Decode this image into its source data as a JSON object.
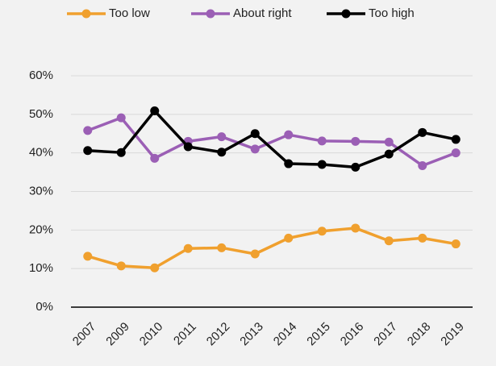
{
  "chart_data": {
    "type": "line",
    "categories": [
      "2007",
      "2009",
      "2010",
      "2011",
      "2012",
      "2013",
      "2014",
      "2015",
      "2016",
      "2017",
      "2018",
      "2019"
    ],
    "series": [
      {
        "name": "Too low",
        "color": "#f0a02e",
        "values": [
          13.2,
          10.7,
          10.2,
          15.2,
          15.4,
          13.8,
          17.9,
          19.7,
          20.5,
          17.2,
          17.9,
          16.4
        ]
      },
      {
        "name": "About right",
        "color": "#9b5fb5",
        "values": [
          45.8,
          49.1,
          38.6,
          43.0,
          44.2,
          41.0,
          44.7,
          43.1,
          43.0,
          42.8,
          36.7,
          40.0
        ]
      },
      {
        "name": "Too high",
        "color": "#000000",
        "values": [
          40.6,
          40.1,
          50.9,
          41.6,
          40.2,
          45.0,
          37.2,
          37.0,
          36.3,
          39.7,
          45.3,
          43.5
        ]
      }
    ],
    "ylim": [
      0,
      60
    ],
    "yticks": [
      {
        "value": 0,
        "label": "0%"
      },
      {
        "value": 10,
        "label": "10%"
      },
      {
        "value": 20,
        "label": "20%"
      },
      {
        "value": 30,
        "label": "30%"
      },
      {
        "value": 40,
        "label": "40%"
      },
      {
        "value": 50,
        "label": "50%"
      },
      {
        "value": 60,
        "label": "60%"
      }
    ],
    "grid": true,
    "legend": "top"
  }
}
